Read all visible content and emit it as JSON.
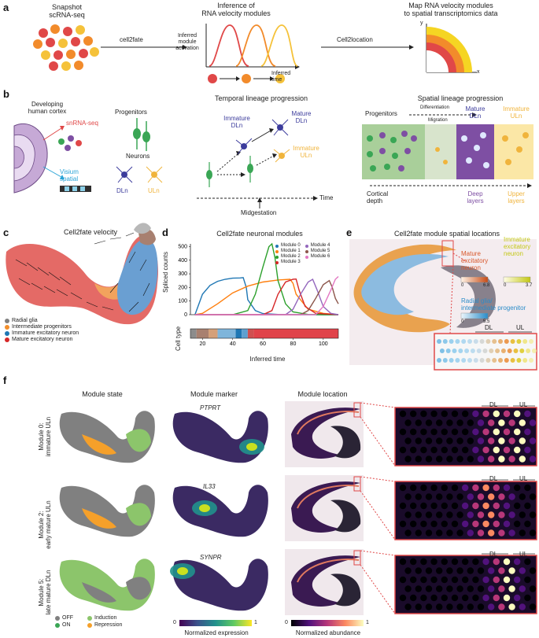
{
  "panel_a": {
    "label": "a",
    "snapshot_title_1": "Snapshot",
    "snapshot_title_2": "scRNA-seq",
    "arrow1": "cell2fate",
    "inference_title_1": "Inference of",
    "inference_title_2": "RNA velocity modules",
    "ylabel_1": "Inferred module",
    "ylabel_2": "activation",
    "xlabel_1": "Inferred",
    "xlabel_2": "time",
    "arrow2": "Cell2location",
    "map_title_1": "Map RNA velocity modules",
    "map_title_2": "to spatial transcriptomics data",
    "axis_y": "y",
    "axis_x": "x"
  },
  "panel_b": {
    "label": "b",
    "dev_1": "Developing",
    "dev_2": "human cortex",
    "snrna": "snRNA-seq",
    "visium_1": "Visium",
    "visium_2": "spatial",
    "progenitors": "Progenitors",
    "neurons": "Neurons",
    "dln": "DLn",
    "uln": "ULn",
    "temporal_title": "Temporal lineage progression",
    "immature_dln_1": "Immature",
    "immature_dln_2": "DLn",
    "mature_dln_1": "Mature",
    "mature_dln_2": "DLn",
    "immature_uln_1": "Immature",
    "immature_uln_2": "ULn",
    "time": "Time",
    "midgestation": "Midgestation",
    "spatial_title": "Spatial lineage progression",
    "sp_progenitors": "Progenitors",
    "differentiation": "Differentiation",
    "migration": "Migration",
    "sp_mature_1": "Mature",
    "sp_mature_2": "DLn",
    "sp_immature_1": "Immature",
    "sp_immature_2": "ULn",
    "cortical_1": "Cortical",
    "cortical_2": "depth",
    "deep_1": "Deep",
    "deep_2": "layers",
    "upper_1": "Upper",
    "upper_2": "layers"
  },
  "panel_c": {
    "label": "c",
    "title": "Cell2fate velocity",
    "legend": [
      {
        "name": "Radial glia",
        "color": "#808080"
      },
      {
        "name": "Intermediate progenitors",
        "color": "#f28e2b"
      },
      {
        "name": "Immature excitatory neuron",
        "color": "#1f77b4"
      },
      {
        "name": "Mature excitatory neuron",
        "color": "#d62728"
      }
    ]
  },
  "panel_d": {
    "label": "d",
    "title": "Cell2fate neuronal modules",
    "ylabel": "Spliced counts",
    "xlabel": "Inferred time",
    "celltype_label": "Cell type",
    "legend": [
      {
        "name": "Module 0",
        "color": "#1f77b4"
      },
      {
        "name": "Module 1",
        "color": "#ff7f0e"
      },
      {
        "name": "Module 2",
        "color": "#2ca02c"
      },
      {
        "name": "Module 3",
        "color": "#d62728"
      },
      {
        "name": "Module 4",
        "color": "#9467bd"
      },
      {
        "name": "Module 5",
        "color": "#8c564b"
      },
      {
        "name": "Module 6",
        "color": "#e377c2"
      }
    ]
  },
  "chart_data": {
    "type": "line",
    "title": "Cell2fate neuronal modules",
    "xlabel": "Inferred time",
    "ylabel": "Spliced counts",
    "xlim": [
      12,
      110
    ],
    "ylim": [
      0,
      520
    ],
    "xticks": [
      20,
      40,
      60,
      80,
      100
    ],
    "yticks": [
      0,
      100,
      200,
      300,
      400,
      500
    ],
    "series": [
      {
        "name": "Module 0",
        "color": "#1f77b4",
        "x": [
          15,
          20,
          25,
          30,
          35,
          40,
          45,
          47,
          49,
          50,
          55,
          60,
          70,
          80,
          90,
          100,
          110
        ],
        "y": [
          0,
          150,
          215,
          245,
          260,
          268,
          270,
          272,
          200,
          110,
          30,
          8,
          2,
          0,
          0,
          0,
          0
        ]
      },
      {
        "name": "Module 1",
        "color": "#ff7f0e",
        "x": [
          15,
          20,
          30,
          40,
          50,
          60,
          70,
          78,
          80,
          82,
          90,
          100,
          110
        ],
        "y": [
          0,
          10,
          80,
          160,
          210,
          240,
          255,
          260,
          230,
          150,
          40,
          10,
          0
        ]
      },
      {
        "name": "Module 2",
        "color": "#2ca02c",
        "x": [
          15,
          40,
          50,
          55,
          60,
          64,
          66,
          68,
          70,
          75,
          80,
          90,
          100,
          110
        ],
        "y": [
          0,
          0,
          30,
          150,
          350,
          500,
          520,
          420,
          250,
          80,
          20,
          2,
          0,
          0
        ]
      },
      {
        "name": "Module 3",
        "color": "#d62728",
        "x": [
          15,
          60,
          66,
          70,
          75,
          80,
          82,
          84,
          88,
          95,
          110
        ],
        "y": [
          0,
          0,
          30,
          150,
          240,
          260,
          262,
          180,
          60,
          10,
          0
        ]
      },
      {
        "name": "Module 4",
        "color": "#9467bd",
        "x": [
          15,
          75,
          80,
          85,
          90,
          93,
          96,
          100,
          105,
          110
        ],
        "y": [
          0,
          0,
          40,
          150,
          240,
          260,
          180,
          60,
          10,
          0
        ]
      },
      {
        "name": "Module 5",
        "color": "#8c564b",
        "x": [
          15,
          85,
          90,
          95,
          100,
          104,
          106,
          108,
          110
        ],
        "y": [
          0,
          0,
          30,
          120,
          220,
          250,
          200,
          120,
          80
        ]
      },
      {
        "name": "Module 6",
        "color": "#e377c2",
        "x": [
          15,
          95,
          100,
          105,
          108,
          110
        ],
        "y": [
          0,
          0,
          60,
          180,
          260,
          280
        ]
      }
    ]
  },
  "panel_e": {
    "label": "e",
    "title": "Cell2fate module spatial locations",
    "mature_1": "Mature",
    "mature_2": "excitatory",
    "mature_3": "neuron",
    "mature_min": "0",
    "mature_max": "6.8",
    "immature_1": "Immature",
    "immature_2": "excitatory",
    "immature_3": "neuron",
    "immature_min": "0",
    "immature_max": "3.7",
    "radial_1": "Radial glia/",
    "radial_2": "intermediate progenitor",
    "radial_min": "0",
    "radial_max": "5.5",
    "dl": "DL",
    "ul": "UL"
  },
  "panel_f": {
    "label": "f",
    "col1": "Module state",
    "col2": "Module marker",
    "col3": "Module location",
    "rows": [
      {
        "line1": "Module 0:",
        "line2": "immature ULn",
        "marker": "PTPRT"
      },
      {
        "line1": "Module 2:",
        "line2": "early mature ULn",
        "marker": "IL33"
      },
      {
        "line1": "Module 5:",
        "line2": "late mature DLn",
        "marker": "SYNPR"
      }
    ],
    "dl": "DL",
    "ul": "UL",
    "legend": [
      {
        "name": "OFF",
        "color": "#808080"
      },
      {
        "name": "Induction",
        "color": "#8cc56b"
      },
      {
        "name": "ON",
        "color": "#3aa655"
      },
      {
        "name": "Repression",
        "color": "#f5a02a"
      }
    ],
    "expr_min": "0",
    "expr_max": "1",
    "expr_label": "Normalized expression",
    "abund_min": "0",
    "abund_max": "1",
    "abund_label": "Normalized abundance"
  }
}
